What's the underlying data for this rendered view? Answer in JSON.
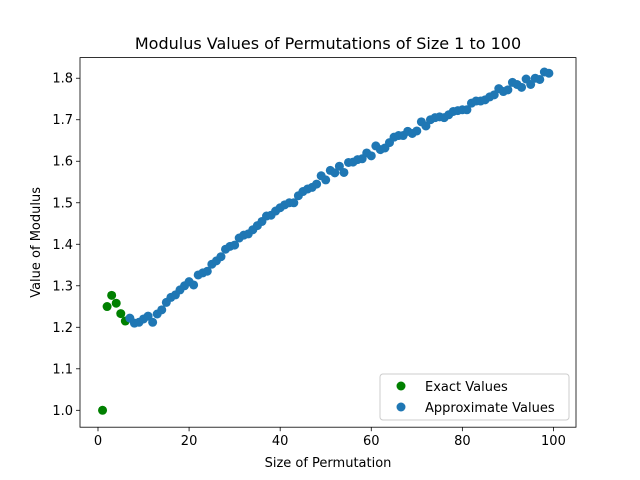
{
  "chart_data": {
    "type": "scatter",
    "title": "Modulus Values of Permutations of Size 1 to 100",
    "xlabel": "Size of Permutation",
    "ylabel": "Value of Modulus",
    "xlim": [
      -3.95,
      104.95
    ],
    "ylim": [
      0.9593,
      1.8497
    ],
    "x_ticks": [
      0,
      20,
      40,
      60,
      80,
      100
    ],
    "x_tick_labels": [
      "0",
      "20",
      "40",
      "60",
      "80",
      "100"
    ],
    "y_ticks": [
      1.0,
      1.1,
      1.2,
      1.3,
      1.4,
      1.5,
      1.6,
      1.7,
      1.8
    ],
    "y_tick_labels": [
      "1.0",
      "1.1",
      "1.2",
      "1.3",
      "1.4",
      "1.5",
      "1.6",
      "1.7",
      "1.8"
    ],
    "grid": false,
    "legend_position": "lower right",
    "series": [
      {
        "name": "Exact Values",
        "color": "#008000",
        "x": [
          1,
          2,
          3,
          4,
          5,
          6
        ],
        "y": [
          1.0,
          1.25,
          1.277,
          1.258,
          1.233,
          1.215
        ]
      },
      {
        "name": "Approximate Values",
        "color": "#1f77b4",
        "x": [
          7,
          8,
          9,
          10,
          11,
          12,
          13,
          14,
          15,
          16,
          17,
          18,
          19,
          20,
          21,
          22,
          23,
          24,
          25,
          26,
          27,
          28,
          29,
          30,
          31,
          32,
          33,
          34,
          35,
          36,
          37,
          38,
          39,
          40,
          41,
          42,
          43,
          44,
          45,
          46,
          47,
          48,
          49,
          50,
          51,
          52,
          53,
          54,
          55,
          56,
          57,
          58,
          59,
          60,
          61,
          62,
          63,
          64,
          65,
          66,
          67,
          68,
          69,
          70,
          71,
          72,
          73,
          74,
          75,
          76,
          77,
          78,
          79,
          80,
          81,
          82,
          83,
          84,
          85,
          86,
          87,
          88,
          89,
          90,
          91,
          92,
          93,
          94,
          95,
          96,
          97,
          98,
          99
        ],
        "y": [
          1.222,
          1.21,
          1.212,
          1.22,
          1.227,
          1.212,
          1.232,
          1.242,
          1.26,
          1.272,
          1.278,
          1.29,
          1.3,
          1.31,
          1.302,
          1.326,
          1.331,
          1.335,
          1.352,
          1.36,
          1.37,
          1.388,
          1.395,
          1.398,
          1.415,
          1.422,
          1.425,
          1.435,
          1.445,
          1.455,
          1.468,
          1.47,
          1.48,
          1.488,
          1.495,
          1.5,
          1.5,
          1.517,
          1.527,
          1.533,
          1.537,
          1.545,
          1.565,
          1.555,
          1.578,
          1.572,
          1.588,
          1.573,
          1.597,
          1.598,
          1.604,
          1.606,
          1.62,
          1.613,
          1.637,
          1.628,
          1.632,
          1.645,
          1.658,
          1.662,
          1.662,
          1.672,
          1.667,
          1.673,
          1.695,
          1.685,
          1.7,
          1.705,
          1.707,
          1.705,
          1.712,
          1.72,
          1.722,
          1.724,
          1.724,
          1.74,
          1.745,
          1.745,
          1.748,
          1.755,
          1.76,
          1.775,
          1.768,
          1.772,
          1.79,
          1.785,
          1.778,
          1.798,
          1.785,
          1.8,
          1.797,
          1.815,
          1.812
        ]
      }
    ]
  }
}
